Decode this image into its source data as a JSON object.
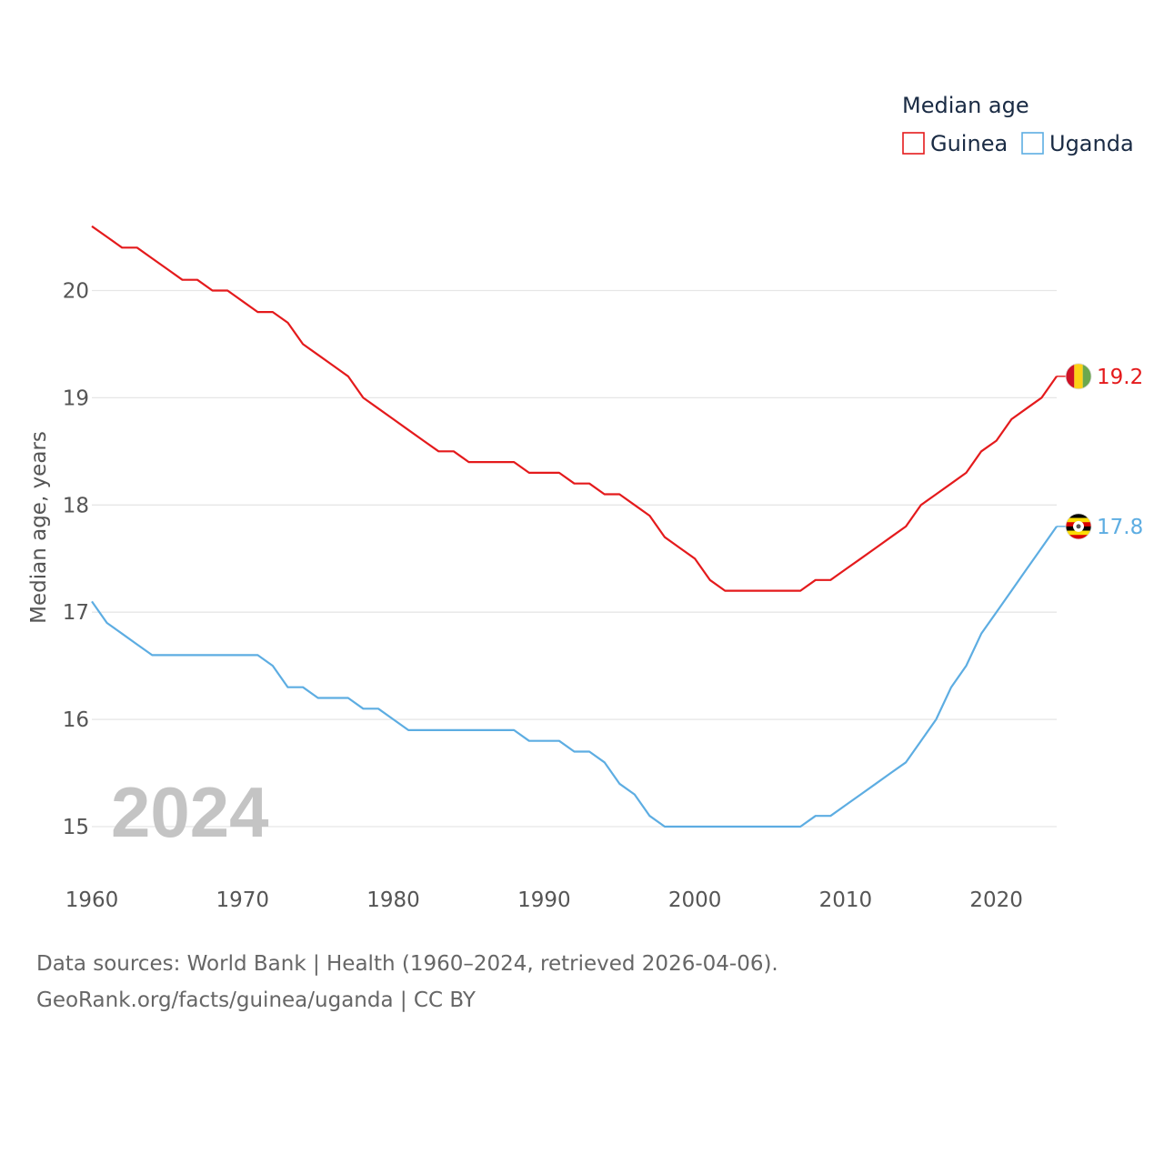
{
  "chart_data": {
    "type": "line",
    "title": "",
    "xlabel": "",
    "ylabel": "Median age, years",
    "xlim": [
      1960,
      2024
    ],
    "ylim": [
      14.6,
      20.8
    ],
    "x_ticks": [
      1960,
      1970,
      1980,
      1990,
      2000,
      2010,
      2020
    ],
    "y_ticks": [
      15,
      16,
      17,
      18,
      19,
      20
    ],
    "grid": true,
    "legend": {
      "title": "Median age",
      "placement": "top-right"
    },
    "watermark_year": "2024",
    "x": [
      1960,
      1961,
      1962,
      1963,
      1964,
      1965,
      1966,
      1967,
      1968,
      1969,
      1970,
      1971,
      1972,
      1973,
      1974,
      1975,
      1976,
      1977,
      1978,
      1979,
      1980,
      1981,
      1982,
      1983,
      1984,
      1985,
      1986,
      1987,
      1988,
      1989,
      1990,
      1991,
      1992,
      1993,
      1994,
      1995,
      1996,
      1997,
      1998,
      1999,
      2000,
      2001,
      2002,
      2003,
      2004,
      2005,
      2006,
      2007,
      2008,
      2009,
      2010,
      2011,
      2012,
      2013,
      2014,
      2015,
      2016,
      2017,
      2018,
      2019,
      2020,
      2021,
      2022,
      2023,
      2024
    ],
    "series": [
      {
        "name": "Guinea",
        "color": "#e41a1c",
        "end_label": "19.2",
        "flag": "guinea-flag",
        "values": [
          20.6,
          20.5,
          20.4,
          20.4,
          20.3,
          20.2,
          20.1,
          20.1,
          20.0,
          20.0,
          19.9,
          19.8,
          19.8,
          19.7,
          19.5,
          19.4,
          19.3,
          19.2,
          19.0,
          18.9,
          18.8,
          18.7,
          18.6,
          18.5,
          18.5,
          18.4,
          18.4,
          18.4,
          18.4,
          18.3,
          18.3,
          18.3,
          18.2,
          18.2,
          18.1,
          18.1,
          18.0,
          17.9,
          17.7,
          17.6,
          17.5,
          17.3,
          17.2,
          17.2,
          17.2,
          17.2,
          17.2,
          17.2,
          17.3,
          17.3,
          17.4,
          17.5,
          17.6,
          17.7,
          17.8,
          18.0,
          18.1,
          18.2,
          18.3,
          18.5,
          18.6,
          18.8,
          18.9,
          19.0,
          19.2
        ]
      },
      {
        "name": "Uganda",
        "color": "#5dade2",
        "end_label": "17.8",
        "flag": "uganda-flag",
        "values": [
          17.1,
          16.9,
          16.8,
          16.7,
          16.6,
          16.6,
          16.6,
          16.6,
          16.6,
          16.6,
          16.6,
          16.6,
          16.5,
          16.3,
          16.3,
          16.2,
          16.2,
          16.2,
          16.1,
          16.1,
          16.0,
          15.9,
          15.9,
          15.9,
          15.9,
          15.9,
          15.9,
          15.9,
          15.9,
          15.8,
          15.8,
          15.8,
          15.7,
          15.7,
          15.6,
          15.4,
          15.3,
          15.1,
          15.0,
          15.0,
          15.0,
          15.0,
          15.0,
          15.0,
          15.0,
          15.0,
          15.0,
          15.0,
          15.1,
          15.1,
          15.2,
          15.3,
          15.4,
          15.5,
          15.6,
          15.8,
          16.0,
          16.3,
          16.5,
          16.8,
          17.0,
          17.2,
          17.4,
          17.6,
          17.8
        ]
      }
    ]
  },
  "footer": {
    "sources": "Data sources: World Bank | Health (1960–2024, retrieved 2026-04-06).",
    "credit": "GeoRank.org/facts/guinea/uganda | CC BY"
  }
}
